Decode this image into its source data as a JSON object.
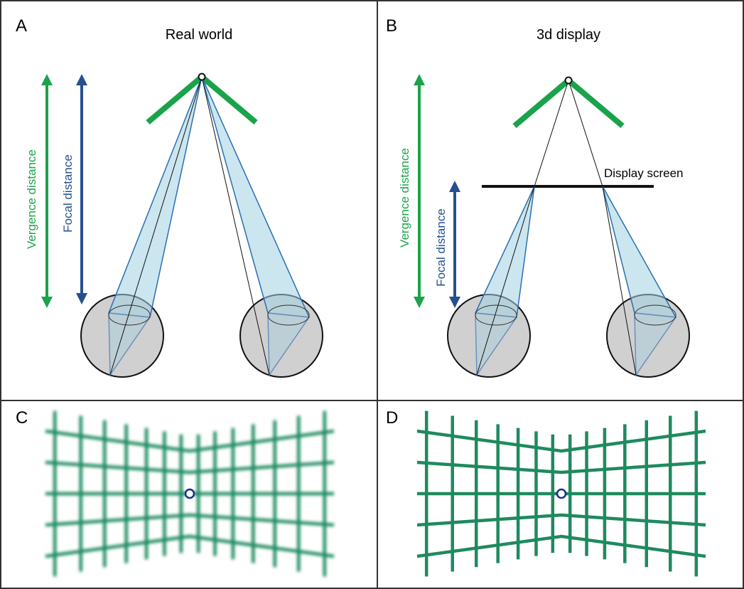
{
  "panels": [
    {
      "letter": "A",
      "title": "Real world",
      "vergence": "Vergence distance",
      "focal": "Focal distance"
    },
    {
      "letter": "B",
      "title": "3d display",
      "vergence": "Vergence distance",
      "focal": "Focal distance",
      "screen": "Display screen"
    },
    {
      "letter": "C"
    },
    {
      "letter": "D"
    }
  ]
}
